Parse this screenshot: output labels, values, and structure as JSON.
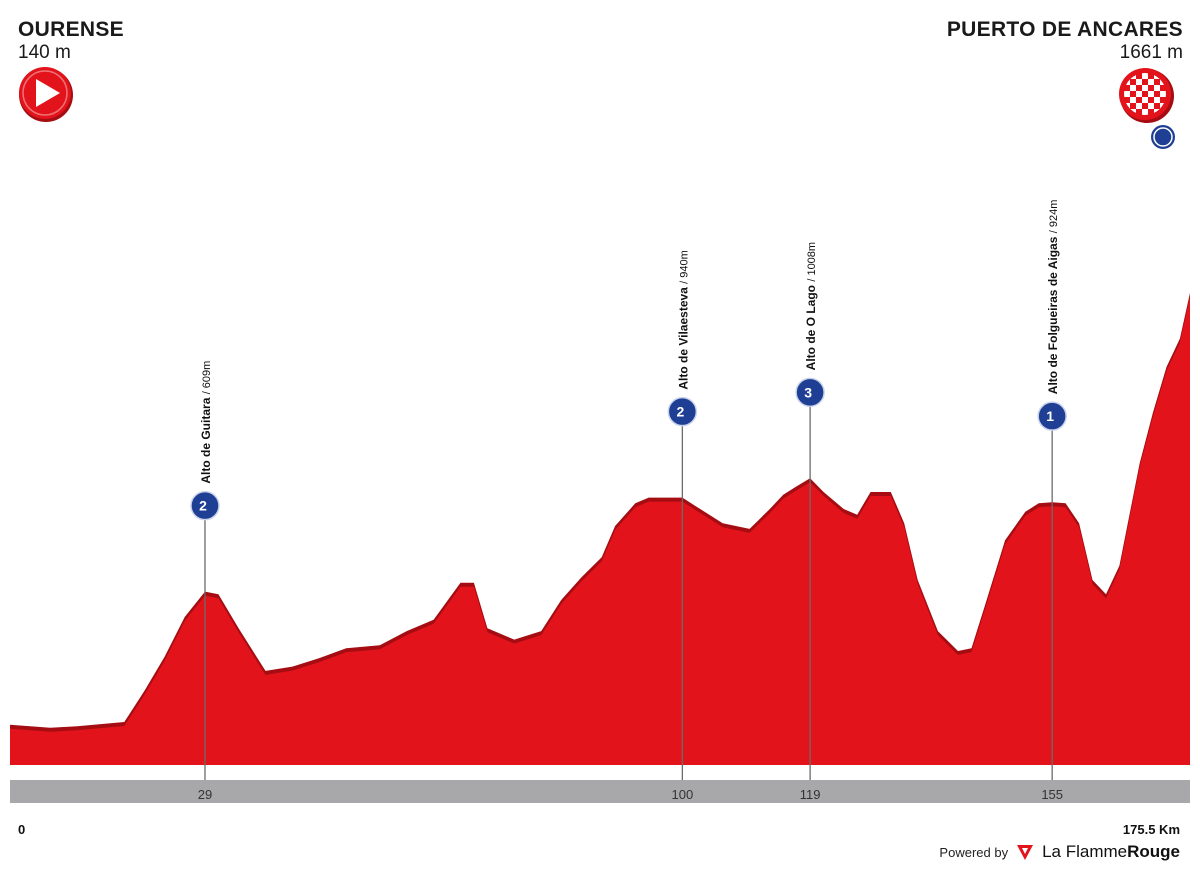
{
  "stage": {
    "start": {
      "name": "OURENSE",
      "altitude": "140 m"
    },
    "finish": {
      "name": "PUERTO DE ANCARES",
      "altitude": "1661 m"
    }
  },
  "colors": {
    "profile": "#e3131b",
    "profile_edge": "#a50d12",
    "badge": "#1f3f94",
    "axis_band": "#a8a8aa"
  },
  "icons": {
    "start": "play-icon",
    "finish": "checkered-flag-icon",
    "finish_badge": "esp-badge-icon"
  },
  "footer": {
    "powered_by": "Powered by",
    "brand_a": "La Flamme",
    "brand_b": "Rouge"
  },
  "chart_data": {
    "type": "area",
    "title": "",
    "xlabel": "",
    "ylabel": "",
    "xlim": [
      0,
      175.5
    ],
    "x_start_label": "0",
    "x_end_label": "175.5 Km",
    "km_marks": [
      {
        "km": 29,
        "label": "29"
      },
      {
        "km": 100,
        "label": "100"
      },
      {
        "km": 119,
        "label": "119"
      },
      {
        "km": 155,
        "label": "155"
      }
    ],
    "climbs": [
      {
        "name": "Alto de Guitara",
        "alt_label": "/ 609m",
        "km": 29,
        "category": "2"
      },
      {
        "name": "Alto de Vilaesteva",
        "alt_label": "/ 940m",
        "km": 100,
        "category": "2"
      },
      {
        "name": "Alto de O Lago",
        "alt_label": "/ 1008m",
        "km": 119,
        "category": "3"
      },
      {
        "name": "Alto de Folgueiras de Aigas",
        "alt_label": "/ 924m",
        "km": 155,
        "category": "1"
      }
    ],
    "series": [
      {
        "x": [
          0,
          6,
          10,
          17,
          20,
          23,
          26,
          29,
          31,
          34,
          38,
          42,
          46,
          50,
          55,
          59,
          63,
          67,
          69,
          71,
          75,
          79,
          82,
          85,
          88,
          90,
          93,
          95,
          98,
          100,
          102,
          104,
          106,
          110,
          113,
          115,
          117,
          119,
          121,
          124,
          126,
          128,
          131,
          133,
          135,
          138,
          141,
          143,
          145,
          148,
          151,
          153,
          155,
          157,
          159,
          161,
          163,
          165,
          168,
          170,
          172,
          174,
          175.5
        ],
        "y": [
          140,
          130,
          135,
          150,
          260,
          380,
          520,
          609,
          600,
          480,
          330,
          345,
          375,
          410,
          420,
          470,
          510,
          640,
          640,
          480,
          440,
          470,
          580,
          660,
          730,
          840,
          920,
          940,
          940,
          940,
          910,
          880,
          850,
          830,
          900,
          950,
          980,
          1008,
          960,
          900,
          880,
          960,
          960,
          850,
          650,
          470,
          400,
          410,
          560,
          790,
          890,
          920,
          924,
          920,
          850,
          650,
          600,
          700,
          1060,
          1240,
          1400,
          1500,
          1661
        ]
      }
    ]
  }
}
